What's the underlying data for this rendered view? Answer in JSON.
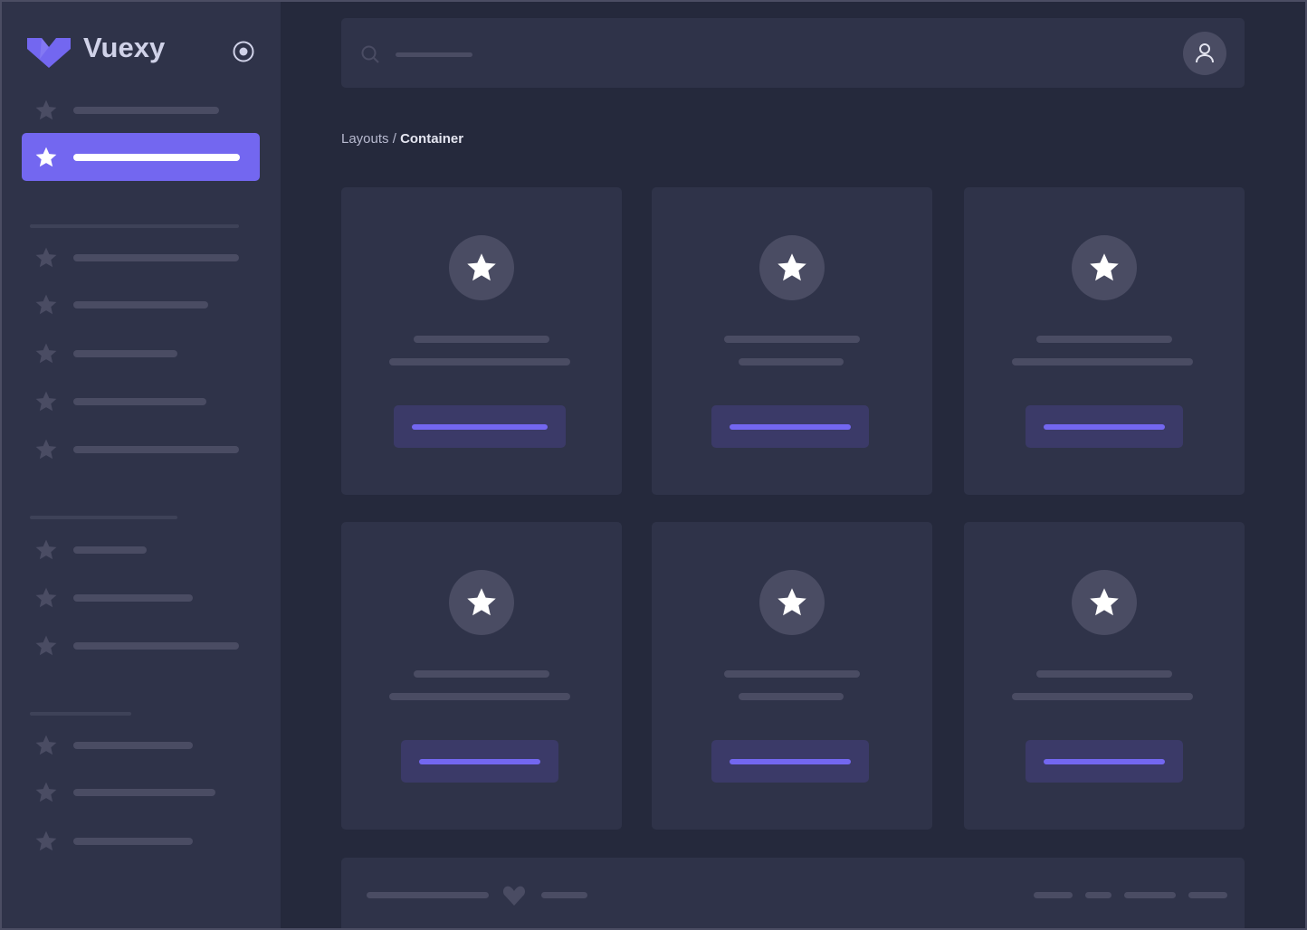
{
  "brand": {
    "name": "Vuexy",
    "color": "#7367f0"
  },
  "breadcrumb": {
    "parent": "Layouts",
    "separator": " / ",
    "current": "Container"
  },
  "icons": {
    "logo": "vuexy-logo",
    "collapse": "radio-circle-icon",
    "nav": "star-icon",
    "search": "search-icon",
    "user": "user-icon",
    "heart": "heart-icon"
  },
  "colors": {
    "background": "#25293c",
    "surface": "#2f3349",
    "placeholder": "#4a4c63",
    "primary": "#7367f0",
    "button_tint": "#3b3a68"
  }
}
